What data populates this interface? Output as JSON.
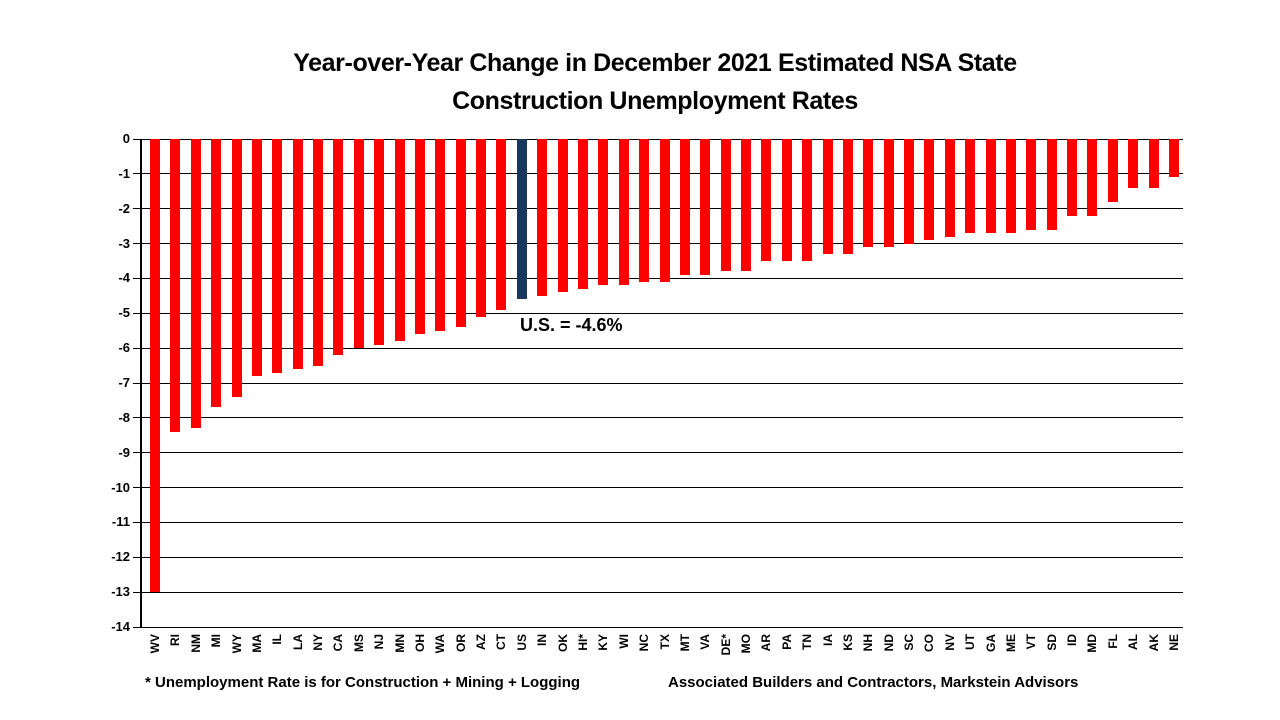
{
  "slide": {
    "title_line1": "Year-over-Year Change in December 2021 Estimated NSA State",
    "title_line2": "Construction Unemployment Rates",
    "footnote": "* Unemployment Rate is for Construction + Mining + Logging",
    "source": "Associated Builders and Contractors, Markstein Advisors"
  },
  "chart_data": {
    "type": "bar",
    "title": "Year-over-Year Change in December 2021 Estimated NSA State Construction Unemployment Rates",
    "xlabel": "",
    "ylabel": "",
    "ylim": [
      -14,
      0
    ],
    "ytick_step": 1,
    "grid": true,
    "legend": "none",
    "annotation": "U.S. = -4.6%",
    "bar_color": "#FF0000",
    "highlight_color": "#17375E",
    "highlight_category": "US",
    "categories": [
      "WV",
      "RI",
      "NM",
      "MI",
      "WY",
      "MA",
      "IL",
      "LA",
      "NY",
      "CA",
      "MS",
      "NJ",
      "MN",
      "OH",
      "WA",
      "OR",
      "AZ",
      "CT",
      "US",
      "IN",
      "OK",
      "HI*",
      "KY",
      "WI",
      "NC",
      "TX",
      "MT",
      "VA",
      "DE*",
      "MO",
      "AR",
      "PA",
      "TN",
      "IA",
      "KS",
      "NH",
      "ND",
      "SC",
      "CO",
      "NV",
      "UT",
      "GA",
      "ME",
      "VT",
      "SD",
      "ID",
      "MD",
      "FL",
      "AL",
      "AK",
      "NE"
    ],
    "values": [
      -13.0,
      -8.4,
      -8.3,
      -7.7,
      -7.4,
      -6.8,
      -6.7,
      -6.6,
      -6.5,
      -6.2,
      -6.0,
      -5.9,
      -5.8,
      -5.6,
      -5.5,
      -5.4,
      -5.1,
      -4.9,
      -4.6,
      -4.5,
      -4.4,
      -4.3,
      -4.2,
      -4.2,
      -4.1,
      -4.1,
      -3.9,
      -3.9,
      -3.8,
      -3.8,
      -3.5,
      -3.5,
      -3.5,
      -3.3,
      -3.3,
      -3.1,
      -3.1,
      -3.0,
      -2.9,
      -2.8,
      -2.7,
      -2.7,
      -2.7,
      -2.6,
      -2.6,
      -2.2,
      -2.2,
      -1.8,
      -1.4,
      -1.4,
      -1.1
    ]
  }
}
